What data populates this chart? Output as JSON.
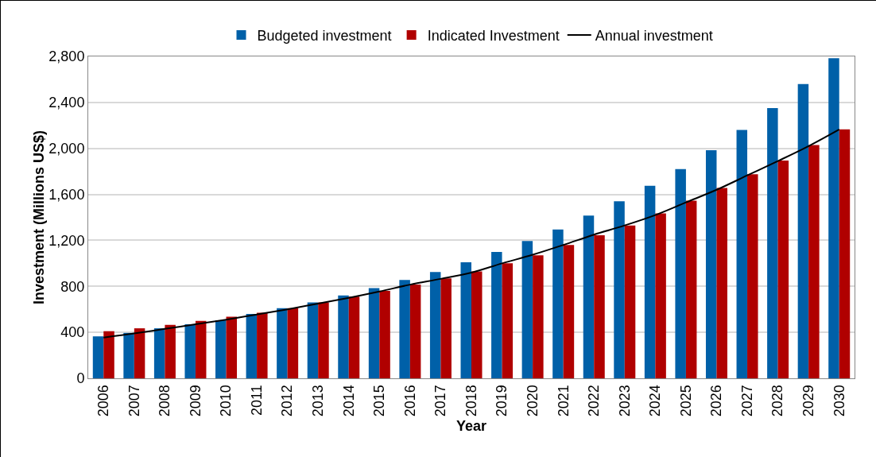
{
  "chart_data": {
    "type": "bar",
    "xlabel": "Year",
    "ylabel": "Investment (Millions US$)",
    "categories": [
      "2006",
      "2007",
      "2008",
      "2009",
      "2010",
      "2011",
      "2012",
      "2013",
      "2014",
      "2015",
      "2016",
      "2017",
      "2018",
      "2019",
      "2020",
      "2021",
      "2022",
      "2023",
      "2024",
      "2025",
      "2026",
      "2027",
      "2028",
      "2029",
      "2030"
    ],
    "series": [
      {
        "name": "Budgeted investment",
        "color": "#0060a8",
        "values": [
          365,
          395,
          435,
          470,
          505,
          560,
          610,
          660,
          720,
          785,
          855,
          925,
          1010,
          1100,
          1195,
          1295,
          1415,
          1540,
          1675,
          1820,
          1985,
          2160,
          2350,
          2560,
          2785
        ]
      },
      {
        "name": "Indicated Investment",
        "color": "#b00000",
        "values": [
          410,
          435,
          465,
          500,
          535,
          570,
          610,
          660,
          710,
          760,
          815,
          870,
          930,
          1000,
          1070,
          1160,
          1245,
          1330,
          1435,
          1545,
          1655,
          1775,
          1895,
          2030,
          2165
        ]
      },
      {
        "name": "Annual investment",
        "type": "line",
        "color": "#000000",
        "values": [
          355,
          390,
          430,
          470,
          510,
          555,
          600,
          650,
          700,
          755,
          815,
          865,
          920,
          1000,
          1075,
          1160,
          1250,
          1330,
          1420,
          1530,
          1640,
          1765,
          1890,
          2020,
          2165
        ]
      }
    ],
    "ylim": [
      0,
      2800
    ],
    "yticks": [
      {
        "value": 0,
        "label": "0"
      },
      {
        "value": 400,
        "label": "400"
      },
      {
        "value": 800,
        "label": "800"
      },
      {
        "value": 1200,
        "label": "1,200"
      },
      {
        "value": 1600,
        "label": "1,600"
      },
      {
        "value": 2000,
        "label": "2,000"
      },
      {
        "value": 2400,
        "label": "2,400"
      },
      {
        "value": 2800,
        "label": "2,800"
      }
    ],
    "grid": "y",
    "legend": "top",
    "marker": "none",
    "line_style": "solid"
  }
}
